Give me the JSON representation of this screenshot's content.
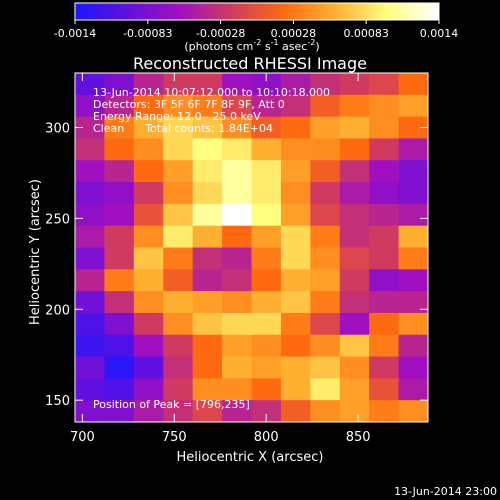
{
  "colorbar": {
    "ticks": [
      "-0.0014",
      "-0.00083",
      "-0.00028",
      "0.00028",
      "0.00083",
      "0.0014"
    ],
    "unit_prefix": "(photons cm",
    "unit_mid1": " s",
    "unit_mid2": " asec",
    "unit_end": ")",
    "sup_cm": "-2",
    "sup_s": "-1",
    "sup_asec": "-2",
    "colormap": [
      "#1818ff",
      "#6010e0",
      "#a010c0",
      "#d03a60",
      "#ff6a10",
      "#ffb030",
      "#ffff80",
      "#ffffff"
    ]
  },
  "chart_data": {
    "type": "heatmap",
    "title": "Reconstructed RHESSI Image",
    "xlabel": "Heliocentric X (arcsec)",
    "ylabel": "Heliocentric Y (arcsec)",
    "xlim": [
      696,
      888
    ],
    "ylim": [
      138,
      330
    ],
    "x_ticks": [
      700,
      750,
      800,
      850
    ],
    "y_ticks": [
      150,
      200,
      250,
      300
    ],
    "value_range": [
      -0.0014,
      0.0014
    ],
    "annotations": [
      "13-Jun-2014 10:07:12.000 to 10:10:18.000",
      "Detectors: 3F 5F 6F 7F 8F 9F, Att 0",
      "Energy Range: 12.0 - 25.0 keV",
      "Clean      Total counts: 1.84E+04"
    ],
    "peak_label": "Position of Peak = [796,235]",
    "peak": [
      796,
      235
    ],
    "grid": [
      [
        -0.001,
        -0.0008,
        -0.0004,
        -0.0002,
        -0.0002,
        -0.0006,
        -0.0007,
        -0.0005,
        -0.0003,
        -0.0002,
        -0.0001,
        0.0002
      ],
      [
        -0.0007,
        -0.0004,
        0.0002,
        0.0004,
        0.0003,
        -0.0001,
        -0.0004,
        -0.0003,
        0.0001,
        0.0003,
        0.0004,
        0.0005
      ],
      [
        -0.0004,
        0.0003,
        0.0006,
        0.0008,
        0.0007,
        0.0004,
        0.0001,
        0.0002,
        0.0005,
        0.0006,
        0.0004,
        0.0002
      ],
      [
        -0.0003,
        0.0002,
        0.0004,
        0.0008,
        0.001,
        0.0009,
        0.0006,
        0.0004,
        0.0004,
        0.0002,
        -0.0002,
        -0.0005
      ],
      [
        -0.0006,
        -0.0004,
        0.0002,
        0.0005,
        0.0009,
        0.0011,
        0.0009,
        0.0005,
        0.0001,
        -0.0003,
        -0.0006,
        -0.0008
      ],
      [
        -0.0008,
        -0.0007,
        -0.0002,
        0.0004,
        0.0008,
        0.0011,
        0.0009,
        0.0004,
        -0.0002,
        -0.0005,
        -0.0007,
        -0.0008
      ],
      [
        -0.0007,
        -0.0006,
        0.0,
        0.0007,
        0.0011,
        0.0014,
        0.001,
        0.0005,
        -0.0001,
        -0.0003,
        -0.0004,
        -0.0005
      ],
      [
        -0.0005,
        -0.0002,
        0.0004,
        0.0009,
        0.0006,
        0.0002,
        0.0005,
        0.0008,
        0.0003,
        -0.0003,
        -0.0002,
        0.0006
      ],
      [
        -0.0008,
        -0.0002,
        0.0007,
        0.0003,
        -0.0003,
        -0.0004,
        0.0003,
        0.0008,
        0.0004,
        -0.0001,
        -0.0002,
        0.0003
      ],
      [
        -0.0004,
        0.0003,
        0.0006,
        0.0001,
        -0.0004,
        -0.0003,
        0.0002,
        0.0006,
        0.0005,
        -0.0002,
        -0.0007,
        -0.0006
      ],
      [
        -0.0009,
        -0.0003,
        0.0004,
        0.0006,
        0.0005,
        0.0004,
        0.0006,
        0.0007,
        0.0003,
        -0.0003,
        -0.0004,
        -0.0004
      ],
      [
        -0.0011,
        -0.0008,
        -0.0002,
        0.0004,
        0.0007,
        0.0008,
        0.0008,
        0.0003,
        -0.0001,
        -0.0006,
        0.0002,
        0.0004
      ],
      [
        -0.0012,
        -0.0011,
        -0.0006,
        -0.0002,
        0.0002,
        0.0005,
        0.0004,
        0.0002,
        0.0004,
        0.0007,
        0.0003,
        -0.0004
      ],
      [
        -0.0009,
        -0.0013,
        -0.001,
        -0.0003,
        0.0002,
        0.0006,
        0.0005,
        0.0006,
        0.0007,
        0.0004,
        -0.0002,
        -0.0006
      ],
      [
        -0.001,
        -0.0011,
        -0.0007,
        -0.0002,
        0.0004,
        0.0004,
        0.0002,
        0.0006,
        0.0009,
        0.0005,
        0.0,
        -0.0005
      ],
      [
        -0.0008,
        -0.0008,
        -0.0005,
        -0.0003,
        -0.0001,
        -0.0004,
        -0.0003,
        0.0001,
        0.0004,
        0.0005,
        0.0003,
        0.0004
      ]
    ]
  },
  "footer": {
    "timestamp": "13-Jun-2014 23:00"
  }
}
